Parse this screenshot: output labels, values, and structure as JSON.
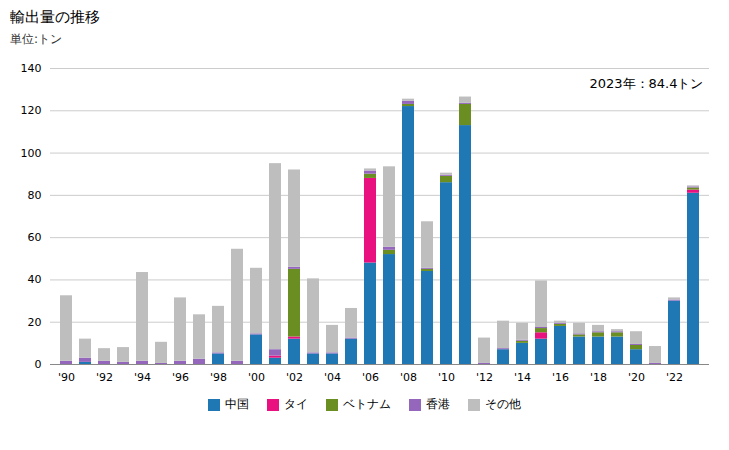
{
  "chart_data": {
    "type": "bar",
    "stacked": true,
    "title": "輸出量の推移",
    "subtitle": "単位:トン",
    "annotation": "2023年：84.4トン",
    "categories": [
      "'90",
      null,
      "'92",
      null,
      "'94",
      null,
      "'96",
      null,
      "'98",
      null,
      "'00",
      null,
      "'02",
      null,
      "'04",
      null,
      "'06",
      null,
      "'08",
      null,
      "'10",
      null,
      "'12",
      null,
      "'14",
      null,
      "'16",
      null,
      "'18",
      null,
      "'20",
      null,
      "'22",
      null
    ],
    "series": [
      {
        "name": "中国",
        "color": "#1F77B4",
        "values": [
          0.0,
          1.0,
          0.0,
          0.0,
          0.0,
          0.0,
          0.0,
          0.0,
          5.0,
          0.0,
          14.0,
          3.0,
          12.0,
          5.0,
          5.0,
          12.0,
          48.0,
          52.0,
          122.0,
          44.0,
          86.0,
          113.0,
          0.0,
          7.0,
          10.0,
          12.0,
          18.0,
          13.0,
          13.0,
          13.0,
          7.0,
          0.0,
          30.0,
          81.0
        ]
      },
      {
        "name": "タイ",
        "color": "#E8117F",
        "values": [
          0.0,
          0.0,
          0.0,
          0.0,
          0.0,
          0.0,
          0.0,
          0.0,
          0.0,
          0.0,
          0.0,
          1.0,
          1.0,
          0.0,
          0.0,
          0.0,
          40.0,
          0.0,
          0.0,
          0.0,
          0.0,
          0.0,
          0.0,
          0.0,
          0.0,
          3.0,
          0.0,
          0.0,
          0.0,
          0.0,
          0.0,
          0.0,
          0.0,
          1.5
        ]
      },
      {
        "name": "ベトナム",
        "color": "#6B8E23",
        "values": [
          0.0,
          0.0,
          0.0,
          0.0,
          0.0,
          0.0,
          0.0,
          0.0,
          0.0,
          0.0,
          0.0,
          0.0,
          32.0,
          0.0,
          0.0,
          0.0,
          2.0,
          2.0,
          1.0,
          1.0,
          3.0,
          10.0,
          0.0,
          0.0,
          1.0,
          2.0,
          1.0,
          1.0,
          2.0,
          2.0,
          2.0,
          0.0,
          0.0,
          1.0
        ]
      },
      {
        "name": "香港",
        "color": "#9467BD",
        "values": [
          1.5,
          2.0,
          1.5,
          1.0,
          1.5,
          0.5,
          1.5,
          2.5,
          0.5,
          1.5,
          0.5,
          3.0,
          1.0,
          0.5,
          0.5,
          0.5,
          1.5,
          1.5,
          1.5,
          0.5,
          0.5,
          0.5,
          0.5,
          0.5,
          0.5,
          0.5,
          0.5,
          0.5,
          0.5,
          0.5,
          0.5,
          0.5,
          0.5,
          0.5
        ]
      },
      {
        "name": "その他",
        "color": "#BEBEBE",
        "values": [
          31.0,
          9.0,
          6.0,
          7.0,
          42.0,
          10.0,
          30.0,
          21.0,
          22.0,
          53.0,
          31.0,
          88.0,
          46.0,
          35.0,
          13.0,
          14.0,
          1.0,
          38.0,
          1.0,
          22.0,
          1.0,
          3.0,
          12.0,
          13.0,
          8.0,
          22.0,
          1.0,
          5.0,
          3.0,
          1.0,
          6.0,
          8.0,
          1.0,
          0.5
        ]
      }
    ],
    "ylim": [
      0,
      140
    ],
    "yticks": [
      0,
      20,
      40,
      60,
      80,
      100,
      120,
      140
    ],
    "grid": true,
    "legend": "bottom"
  }
}
